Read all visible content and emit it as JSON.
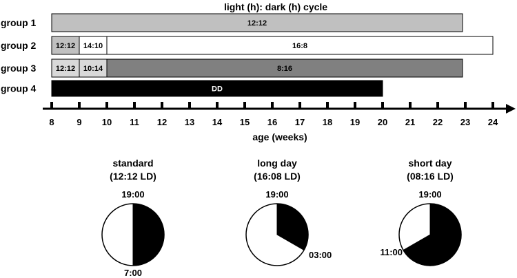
{
  "title": "light (h): dark (h) cycle",
  "axis": {
    "label": "age (weeks)",
    "range": [
      8,
      24
    ],
    "ticks": [
      "8",
      "9",
      "10",
      "11",
      "12",
      "13",
      "14",
      "15",
      "16",
      "17",
      "18",
      "19",
      "20",
      "21",
      "22",
      "23",
      "24"
    ]
  },
  "groups": [
    {
      "name": "group 1",
      "segments": [
        {
          "label": "12:12",
          "start": 8,
          "end": 22.9,
          "color": "#c0c0c0",
          "text_color": "#000000"
        }
      ]
    },
    {
      "name": "group 2",
      "segments": [
        {
          "label": "12:12",
          "start": 8,
          "end": 9,
          "color": "#c0c0c0",
          "text_color": "#000000"
        },
        {
          "label": "14:10",
          "start": 9,
          "end": 10,
          "color": "#ffffff",
          "text_color": "#000000"
        },
        {
          "label": "16:8",
          "start": 10,
          "end": 24,
          "color": "#ffffff",
          "text_color": "#000000"
        }
      ]
    },
    {
      "name": "group 3",
      "segments": [
        {
          "label": "12:12",
          "start": 8,
          "end": 9,
          "color": "#d9d9d9",
          "text_color": "#000000"
        },
        {
          "label": "10:14",
          "start": 9,
          "end": 10,
          "color": "#d9d9d9",
          "text_color": "#000000"
        },
        {
          "label": "8:16",
          "start": 10,
          "end": 22.9,
          "color": "#808080",
          "text_color": "#000000"
        }
      ]
    },
    {
      "name": "group 4",
      "segments": [
        {
          "label": "DD",
          "start": 8,
          "end": 20,
          "color": "#000000",
          "text_color": "#ffffff"
        }
      ]
    }
  ],
  "clocks": [
    {
      "title1": "standard",
      "title2": "(12:12 LD)",
      "dark_start_hour": 19,
      "dark_hours": 12,
      "labels": [
        "19:00",
        "7:00"
      ]
    },
    {
      "title1": "long day",
      "title2": "(16:08 LD)",
      "dark_start_hour": 19,
      "dark_hours": 8,
      "labels": [
        "19:00",
        "03:00"
      ]
    },
    {
      "title1": "short day",
      "title2": "(08:16 LD)",
      "dark_start_hour": 19,
      "dark_hours": 16,
      "labels": [
        "19:00",
        "11:00"
      ]
    }
  ]
}
